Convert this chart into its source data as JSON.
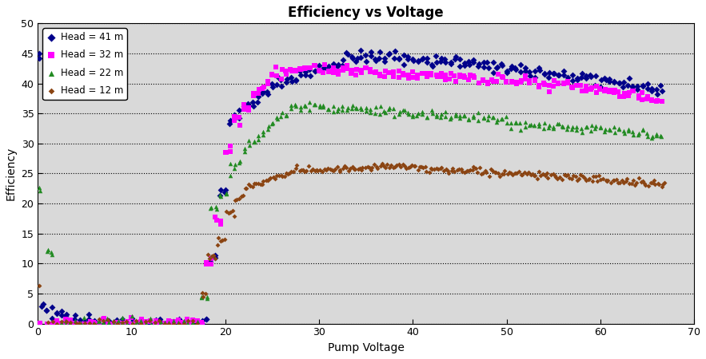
{
  "title": "Efficiency vs Voltage",
  "xlabel": "Pump Voltage",
  "ylabel": "Efficiency",
  "xlim": [
    0,
    70
  ],
  "ylim": [
    0,
    50
  ],
  "xticks": [
    0,
    10,
    20,
    30,
    40,
    50,
    60,
    70
  ],
  "yticks": [
    0,
    5,
    10,
    15,
    20,
    25,
    30,
    35,
    40,
    45,
    50
  ],
  "plot_bg_color": "#d9d9d9",
  "fig_bg_color": "#ffffff",
  "grid_color": "#000000",
  "grid_linestyle": ":",
  "series": [
    {
      "label": "Head = 41 m",
      "color": "#00008B",
      "marker": "D",
      "markersize": 4
    },
    {
      "label": "Head = 32 m",
      "color": "#FF00FF",
      "marker": "s",
      "markersize": 4
    },
    {
      "label": "Head = 22 m",
      "color": "#228B22",
      "marker": "^",
      "markersize": 4
    },
    {
      "label": "Head = 12 m",
      "color": "#8B4513",
      "marker": "D",
      "markersize": 3
    }
  ]
}
